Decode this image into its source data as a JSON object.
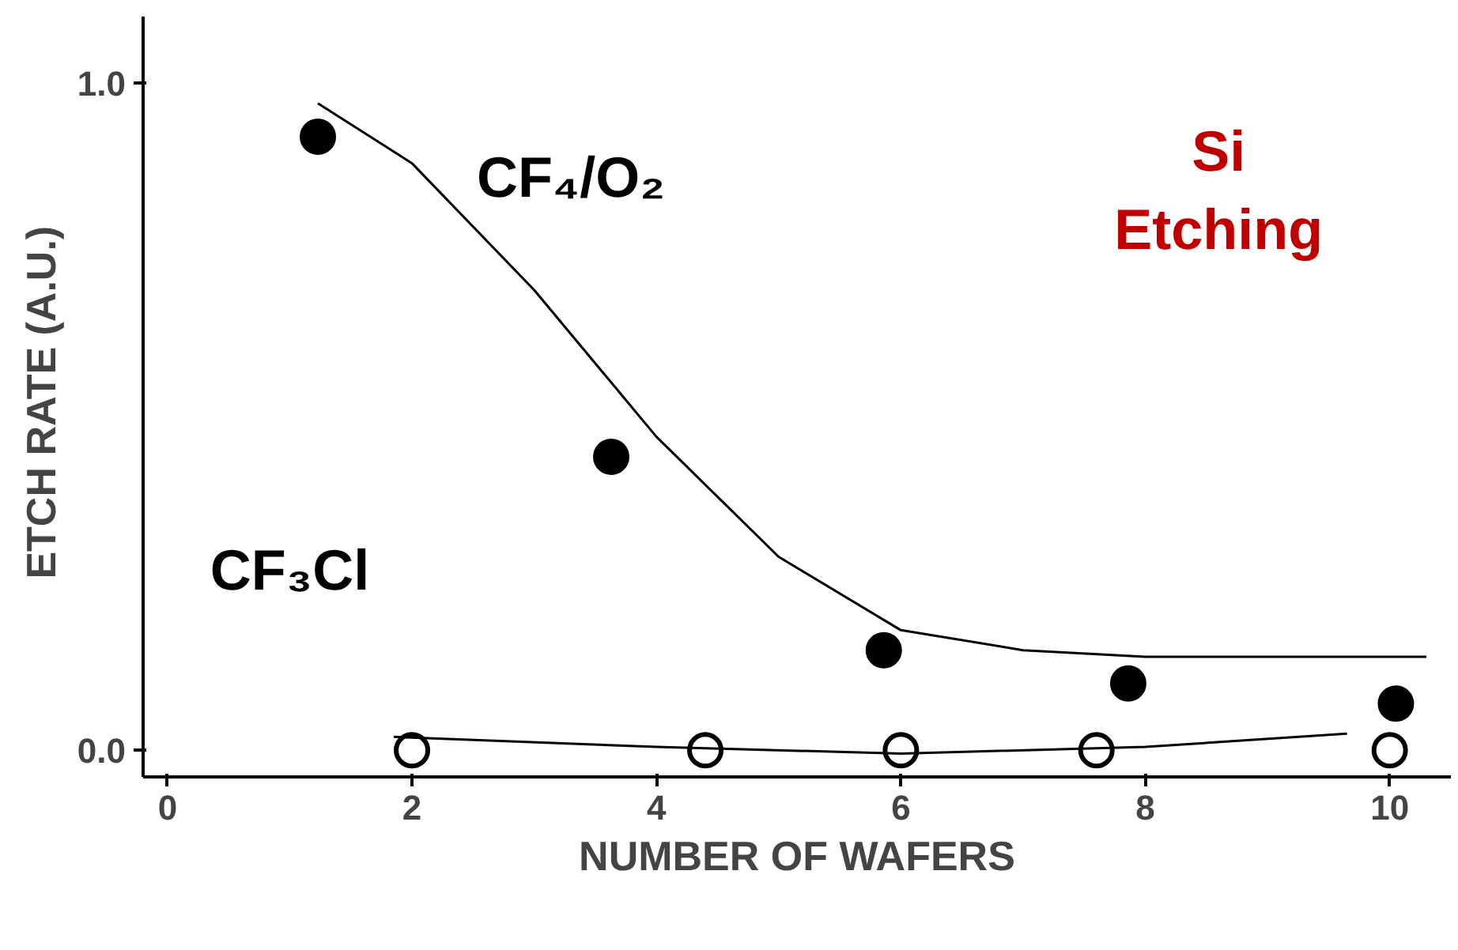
{
  "chart_data": {
    "type": "scatter",
    "xlabel": "NUMBER OF WAFERS",
    "ylabel": "ETCH RATE  (A.U.)",
    "xlim": [
      -0.2,
      10.5
    ],
    "ylim": [
      -0.04,
      1.1
    ],
    "xticks": [
      0,
      2,
      4,
      6,
      8,
      10
    ],
    "yticks": [
      {
        "value": 0,
        "label": "0.0"
      },
      {
        "value": 1,
        "label": "1.0"
      }
    ],
    "grid": false,
    "series": [
      {
        "marker": "circle",
        "color": "#000000",
        "x": [
          1.23,
          3.63,
          5.86,
          7.86,
          10.05
        ],
        "values": [
          0.92,
          0.44,
          0.15,
          0.1,
          0.07
        ]
      },
      {
        "marker": "circle",
        "color": "#000000",
        "x": [
          2.0,
          4.4,
          6.0,
          7.6,
          10.0
        ],
        "values": [
          0.0,
          0.0,
          0.0,
          0.0,
          0.0
        ]
      },
      {
        "type": "line",
        "color": "#000000",
        "x": [
          1.23,
          2,
          3,
          4,
          5,
          6,
          7,
          8,
          9,
          10.3
        ],
        "values": [
          0.97,
          0.88,
          0.69,
          0.47,
          0.29,
          0.18,
          0.15,
          0.14,
          0.14,
          0.14
        ]
      },
      {
        "type": "line",
        "color": "#000000",
        "x": [
          1.85,
          4,
          6,
          8,
          9.65
        ],
        "values": [
          0.02,
          0.005,
          -0.005,
          0.005,
          0.025
        ]
      }
    ],
    "annotations": [
      "CF₄/O₂",
      "CF₃Cl",
      "Si\nEtching"
    ]
  }
}
